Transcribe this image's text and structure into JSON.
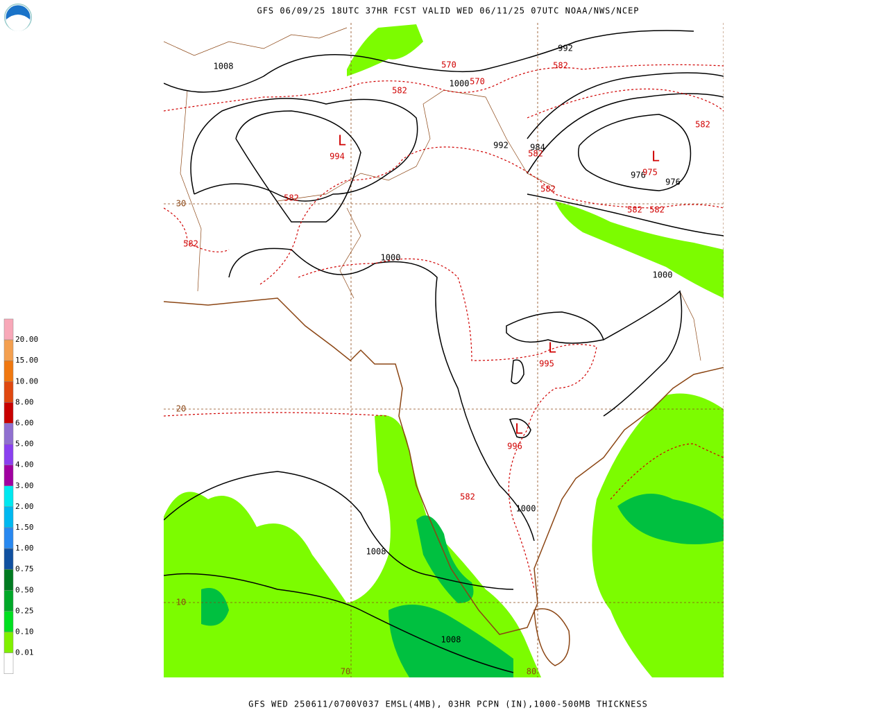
{
  "header": {
    "title": "GFS 06/09/25 18UTC 37HR FCST VALID WED 06/11/25 07UTC NOAA/NWS/NCEP"
  },
  "footer": {
    "caption": "GFS WED 250611/0700V037 EMSL(4MB), 03HR PCPN (IN),1000-500MB THICKNESS"
  },
  "legend": {
    "labels": [
      "20.00",
      "15.00",
      "10.00",
      "8.00",
      "6.00",
      "5.00",
      "4.00",
      "3.00",
      "2.00",
      "1.50",
      "1.00",
      "0.75",
      "0.50",
      "0.25",
      "0.10",
      "0.01"
    ]
  },
  "map": {
    "pressure_labels": [
      "1008",
      "992",
      "1000",
      "992",
      "984",
      "976",
      "976",
      "1000",
      "1000",
      "1000",
      "1008",
      "1008"
    ],
    "thickness_labels": [
      "570",
      "570",
      "582",
      "582",
      "994",
      "582",
      "975",
      "582",
      "582",
      "582",
      "582",
      "582",
      "582",
      "995",
      "996",
      "582"
    ],
    "lows": [
      "L",
      "L",
      "L",
      "L"
    ],
    "lat_labels": [
      "30",
      "20",
      "10"
    ],
    "lon_labels": [
      "70",
      "80"
    ]
  }
}
